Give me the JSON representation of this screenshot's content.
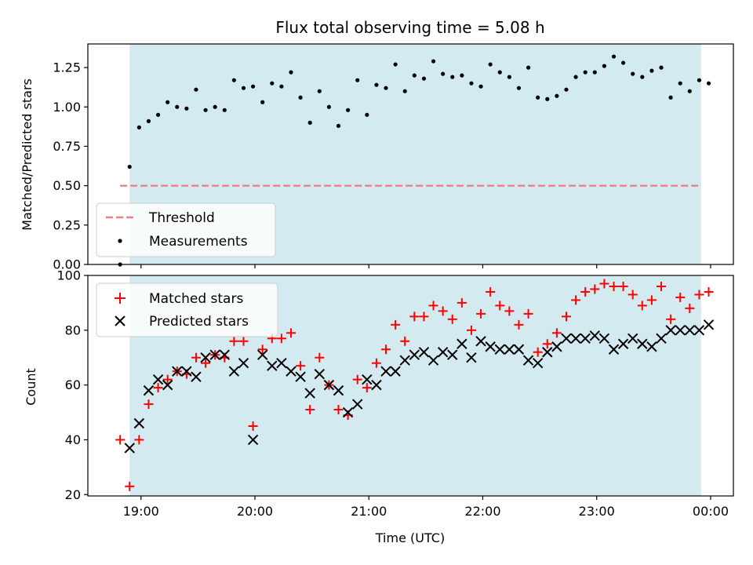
{
  "chart_data": [
    {
      "type": "scatter",
      "title": "Flux total observing time = 5.08 h",
      "xlabel": "",
      "ylabel": "Matched/Predicted stars",
      "ylim": [
        0,
        1.4
      ],
      "yticks": [
        "0.00",
        "0.25",
        "0.50",
        "0.75",
        "1.00",
        "1.25"
      ],
      "xlim": [
        "18:32",
        "00:12"
      ],
      "observing_window": [
        "18:54",
        "23:55"
      ],
      "threshold": {
        "name": "Threshold",
        "value": 0.5,
        "x_range": [
          "18:49",
          "23:55"
        ],
        "color": "#f08080"
      },
      "legend": {
        "placement": "lower-left",
        "entries": [
          "Threshold",
          "Measurements"
        ]
      },
      "series": [
        {
          "name": "Measurements",
          "color": "#000000",
          "marker": "dot",
          "points": [
            [
              "18:49",
              0.0
            ],
            [
              "18:54",
              0.62
            ],
            [
              "18:59",
              0.87
            ],
            [
              "19:04",
              0.91
            ],
            [
              "19:09",
              0.95
            ],
            [
              "19:14",
              1.03
            ],
            [
              "19:19",
              1.0
            ],
            [
              "19:24",
              0.99
            ],
            [
              "19:29",
              1.11
            ],
            [
              "19:34",
              0.98
            ],
            [
              "19:39",
              1.0
            ],
            [
              "19:44",
              0.98
            ],
            [
              "19:49",
              1.17
            ],
            [
              "19:54",
              1.12
            ],
            [
              "19:59",
              1.13
            ],
            [
              "20:04",
              1.03
            ],
            [
              "20:09",
              1.15
            ],
            [
              "20:14",
              1.13
            ],
            [
              "20:19",
              1.22
            ],
            [
              "20:24",
              1.06
            ],
            [
              "20:29",
              0.9
            ],
            [
              "20:34",
              1.1
            ],
            [
              "20:39",
              1.0
            ],
            [
              "20:44",
              0.88
            ],
            [
              "20:49",
              0.98
            ],
            [
              "20:54",
              1.17
            ],
            [
              "20:59",
              0.95
            ],
            [
              "21:04",
              1.14
            ],
            [
              "21:09",
              1.12
            ],
            [
              "21:14",
              1.27
            ],
            [
              "21:19",
              1.1
            ],
            [
              "21:24",
              1.2
            ],
            [
              "21:29",
              1.18
            ],
            [
              "21:34",
              1.29
            ],
            [
              "21:39",
              1.21
            ],
            [
              "21:44",
              1.19
            ],
            [
              "21:49",
              1.2
            ],
            [
              "21:54",
              1.15
            ],
            [
              "21:59",
              1.13
            ],
            [
              "22:04",
              1.27
            ],
            [
              "22:09",
              1.22
            ],
            [
              "22:14",
              1.19
            ],
            [
              "22:19",
              1.12
            ],
            [
              "22:24",
              1.25
            ],
            [
              "22:29",
              1.06
            ],
            [
              "22:34",
              1.05
            ],
            [
              "22:39",
              1.07
            ],
            [
              "22:44",
              1.11
            ],
            [
              "22:49",
              1.19
            ],
            [
              "22:54",
              1.22
            ],
            [
              "22:59",
              1.22
            ],
            [
              "23:04",
              1.26
            ],
            [
              "23:09",
              1.32
            ],
            [
              "23:14",
              1.28
            ],
            [
              "23:19",
              1.21
            ],
            [
              "23:24",
              1.19
            ],
            [
              "23:29",
              1.23
            ],
            [
              "23:34",
              1.25
            ],
            [
              "23:39",
              1.06
            ],
            [
              "23:44",
              1.15
            ],
            [
              "23:49",
              1.1
            ],
            [
              "23:54",
              1.17
            ],
            [
              "23:59",
              1.15
            ]
          ]
        }
      ]
    },
    {
      "type": "scatter",
      "title": "",
      "xlabel": "Time (UTC)",
      "ylabel": "Count",
      "ylim": [
        19.5,
        100
      ],
      "yticks": [
        "20",
        "40",
        "60",
        "80",
        "100"
      ],
      "xlim": [
        "18:32",
        "00:12"
      ],
      "xticks": [
        "19:00",
        "20:00",
        "21:00",
        "22:00",
        "23:00",
        "00:00"
      ],
      "observing_window": [
        "18:54",
        "23:55"
      ],
      "legend": {
        "placement": "top-left",
        "entries": [
          "Matched stars",
          "Predicted stars"
        ]
      },
      "series": [
        {
          "name": "Matched stars",
          "color": "#ff0000",
          "marker": "plus",
          "points": [
            [
              "18:49",
              40
            ],
            [
              "18:54",
              23
            ],
            [
              "18:59",
              40
            ],
            [
              "19:04",
              53
            ],
            [
              "19:09",
              59
            ],
            [
              "19:14",
              62
            ],
            [
              "19:19",
              65
            ],
            [
              "19:24",
              64
            ],
            [
              "19:29",
              70
            ],
            [
              "19:34",
              68
            ],
            [
              "19:39",
              71
            ],
            [
              "19:44",
              70
            ],
            [
              "19:49",
              76
            ],
            [
              "19:54",
              76
            ],
            [
              "19:59",
              45
            ],
            [
              "20:04",
              73
            ],
            [
              "20:09",
              77
            ],
            [
              "20:14",
              77
            ],
            [
              "20:19",
              79
            ],
            [
              "20:24",
              67
            ],
            [
              "20:29",
              51
            ],
            [
              "20:34",
              70
            ],
            [
              "20:39",
              60
            ],
            [
              "20:44",
              51
            ],
            [
              "20:49",
              49
            ],
            [
              "20:54",
              62
            ],
            [
              "20:59",
              59
            ],
            [
              "21:04",
              68
            ],
            [
              "21:09",
              73
            ],
            [
              "21:14",
              82
            ],
            [
              "21:19",
              76
            ],
            [
              "21:24",
              85
            ],
            [
              "21:29",
              85
            ],
            [
              "21:34",
              89
            ],
            [
              "21:39",
              87
            ],
            [
              "21:44",
              84
            ],
            [
              "21:49",
              90
            ],
            [
              "21:54",
              80
            ],
            [
              "21:59",
              86
            ],
            [
              "22:04",
              94
            ],
            [
              "22:09",
              89
            ],
            [
              "22:14",
              87
            ],
            [
              "22:19",
              82
            ],
            [
              "22:24",
              86
            ],
            [
              "22:29",
              72
            ],
            [
              "22:34",
              75
            ],
            [
              "22:39",
              79
            ],
            [
              "22:44",
              85
            ],
            [
              "22:49",
              91
            ],
            [
              "22:54",
              94
            ],
            [
              "22:59",
              95
            ],
            [
              "23:04",
              97
            ],
            [
              "23:09",
              96
            ],
            [
              "23:14",
              96
            ],
            [
              "23:19",
              93
            ],
            [
              "23:24",
              89
            ],
            [
              "23:29",
              91
            ],
            [
              "23:34",
              96
            ],
            [
              "23:39",
              84
            ],
            [
              "23:44",
              92
            ],
            [
              "23:49",
              88
            ],
            [
              "23:54",
              93
            ],
            [
              "23:59",
              94
            ]
          ]
        },
        {
          "name": "Predicted stars",
          "color": "#000000",
          "marker": "x",
          "points": [
            [
              "18:54",
              37
            ],
            [
              "18:59",
              46
            ],
            [
              "19:04",
              58
            ],
            [
              "19:09",
              62
            ],
            [
              "19:14",
              60
            ],
            [
              "19:19",
              65
            ],
            [
              "19:24",
              65
            ],
            [
              "19:29",
              63
            ],
            [
              "19:34",
              70
            ],
            [
              "19:39",
              71
            ],
            [
              "19:44",
              71
            ],
            [
              "19:49",
              65
            ],
            [
              "19:54",
              68
            ],
            [
              "19:59",
              40
            ],
            [
              "20:04",
              71
            ],
            [
              "20:09",
              67
            ],
            [
              "20:14",
              68
            ],
            [
              "20:19",
              65
            ],
            [
              "20:24",
              63
            ],
            [
              "20:29",
              57
            ],
            [
              "20:34",
              64
            ],
            [
              "20:39",
              60
            ],
            [
              "20:44",
              58
            ],
            [
              "20:49",
              50
            ],
            [
              "20:54",
              53
            ],
            [
              "20:59",
              62
            ],
            [
              "21:04",
              60
            ],
            [
              "21:09",
              65
            ],
            [
              "21:14",
              65
            ],
            [
              "21:19",
              69
            ],
            [
              "21:24",
              71
            ],
            [
              "21:29",
              72
            ],
            [
              "21:34",
              69
            ],
            [
              "21:39",
              72
            ],
            [
              "21:44",
              71
            ],
            [
              "21:49",
              75
            ],
            [
              "21:54",
              70
            ],
            [
              "21:59",
              76
            ],
            [
              "22:04",
              74
            ],
            [
              "22:09",
              73
            ],
            [
              "22:14",
              73
            ],
            [
              "22:19",
              73
            ],
            [
              "22:24",
              69
            ],
            [
              "22:29",
              68
            ],
            [
              "22:34",
              72
            ],
            [
              "22:39",
              74
            ],
            [
              "22:44",
              77
            ],
            [
              "22:49",
              77
            ],
            [
              "22:54",
              77
            ],
            [
              "22:59",
              78
            ],
            [
              "23:04",
              77
            ],
            [
              "23:09",
              73
            ],
            [
              "23:14",
              75
            ],
            [
              "23:19",
              77
            ],
            [
              "23:24",
              75
            ],
            [
              "23:29",
              74
            ],
            [
              "23:34",
              77
            ],
            [
              "23:39",
              80
            ],
            [
              "23:44",
              80
            ],
            [
              "23:49",
              80
            ],
            [
              "23:54",
              80
            ],
            [
              "23:59",
              82
            ]
          ]
        }
      ]
    }
  ]
}
